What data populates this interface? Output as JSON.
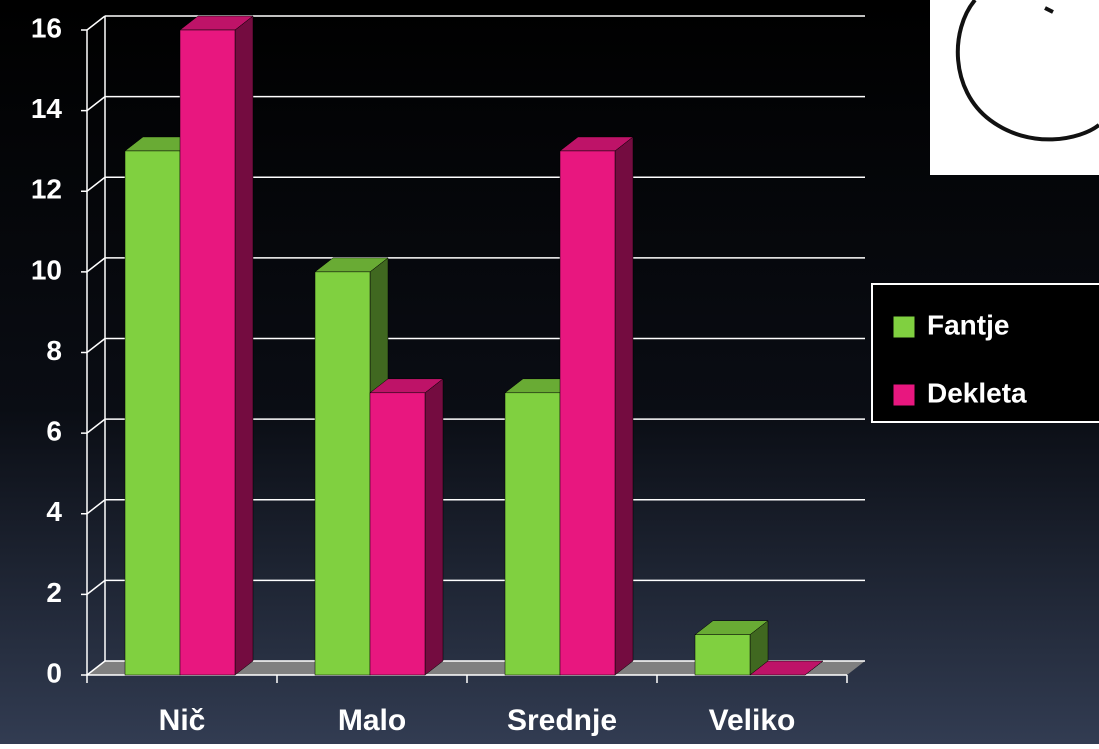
{
  "chart_data": {
    "type": "bar3d",
    "categories": [
      "Nič",
      "Malo",
      "Srednje",
      "Veliko"
    ],
    "series": [
      {
        "name": "Fantje",
        "color": "#80d040",
        "values": [
          13,
          10,
          7,
          1
        ]
      },
      {
        "name": "Dekleta",
        "color": "#e8177f",
        "values": [
          16,
          7,
          13,
          0
        ]
      }
    ],
    "ylim": [
      0,
      16
    ],
    "yticks": [
      0,
      2,
      4,
      6,
      8,
      10,
      12,
      14,
      16
    ],
    "grid": true,
    "legend": "right"
  }
}
